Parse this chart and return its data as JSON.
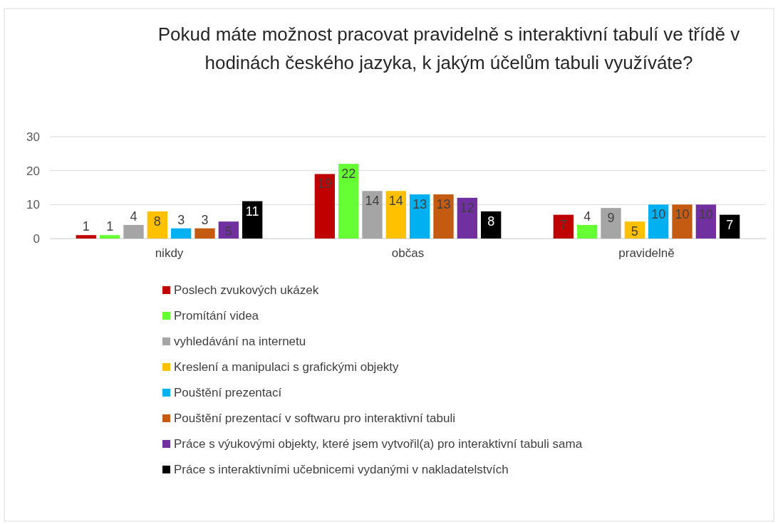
{
  "chart_data": {
    "type": "bar",
    "title": "Pokud máte možnost pracovat pravidelně s interaktivní tabulí ve třídě v hodinách českého jazyka, k jakým účelům tabuli využíváte?",
    "categories": [
      "nikdy",
      "občas",
      "pravidelně"
    ],
    "series": [
      {
        "name": "Poslech zvukových ukázek",
        "color": "#c00000",
        "values": [
          1,
          19,
          7
        ]
      },
      {
        "name": "Promítání videa",
        "color": "#66ff33",
        "values": [
          1,
          22,
          4
        ]
      },
      {
        "name": "vyhledávání na internetu",
        "color": "#a5a5a5",
        "values": [
          4,
          14,
          9
        ]
      },
      {
        "name": "Kreslení a manipulaci s grafickými objekty",
        "color": "#ffc000",
        "values": [
          8,
          14,
          5
        ]
      },
      {
        "name": "Pouštění prezentací",
        "color": "#00b0f0",
        "values": [
          3,
          13,
          10
        ]
      },
      {
        "name": "Pouštění prezentací v softwaru pro interaktivní tabuli",
        "color": "#c55a11",
        "values": [
          3,
          13,
          10
        ]
      },
      {
        "name": "Práce s výukovými objekty, které jsem vytvořil(a) pro interaktivní tabuli sama",
        "color": "#7030a0",
        "values": [
          5,
          12,
          10
        ]
      },
      {
        "name": "Práce s interaktivními učebnicemi vydanými v nakladatelstvích",
        "color": "#000000",
        "values": [
          11,
          8,
          7
        ]
      }
    ],
    "ylim": [
      0,
      30
    ],
    "yticks": [
      0,
      10,
      20,
      30
    ],
    "grid": "y",
    "legend": "bottom",
    "data_labels": true
  }
}
